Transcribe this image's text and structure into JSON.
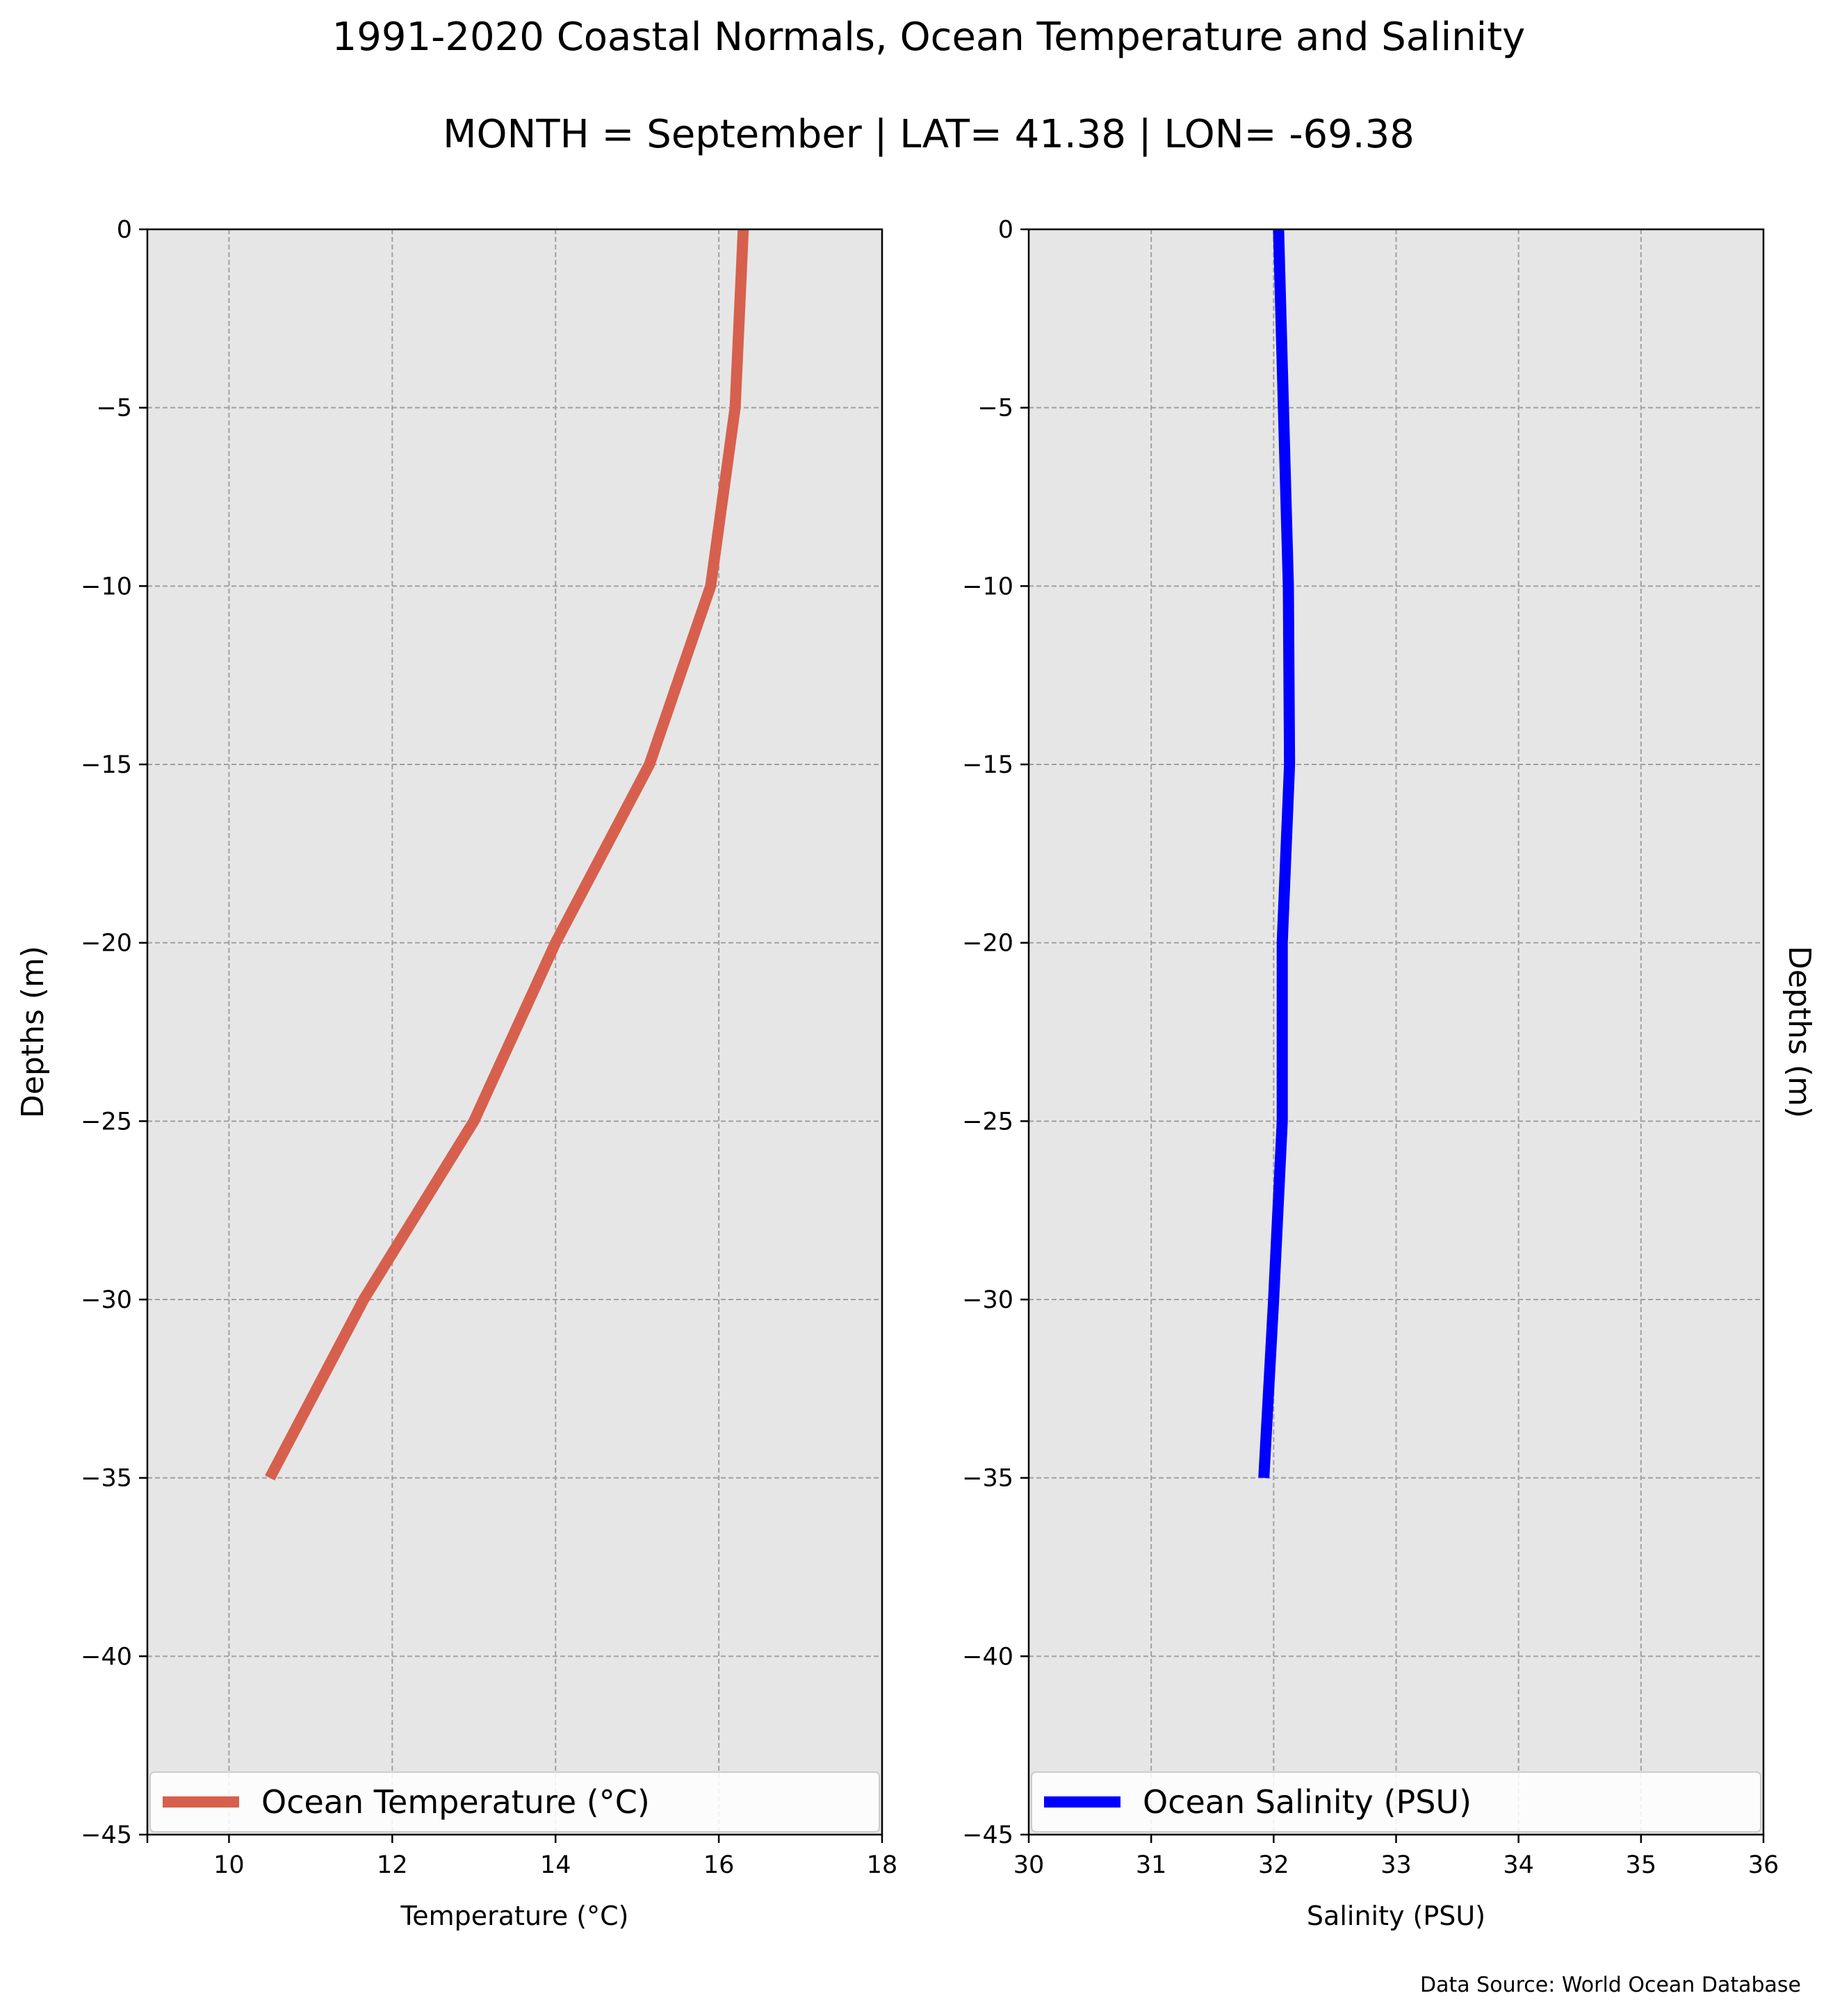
{
  "title": "1991-2020 Coastal Normals, Ocean Temperature and Salinity",
  "subtitle": "MONTH = September | LAT= 41.38 | LON= -69.38",
  "source_note": "Data Source: World Ocean Database",
  "colors": {
    "background": "#ffffff",
    "plot_bg": "#e6e6e6",
    "grid": "#a0a0a0",
    "temperature": "#d6604d",
    "salinity": "#0000ff"
  },
  "chart_data": [
    {
      "type": "line",
      "xlabel": "Temperature ($^\\circ$C)",
      "xlabel_display": "Temperature (°C)",
      "ylabel": "Depths (m)",
      "xlim": [
        9,
        18
      ],
      "ylim": [
        -45,
        0
      ],
      "xticks": [
        10,
        12,
        14,
        16,
        18
      ],
      "yticks": [
        0,
        -5,
        -10,
        -15,
        -20,
        -25,
        -30,
        -35,
        -40,
        -45
      ],
      "ytick_labels": [
        "0",
        "−5",
        "−10",
        "−15",
        "−20",
        "−25",
        "−30",
        "−35",
        "−40",
        "−45"
      ],
      "grid": true,
      "legend": "lower center",
      "series": [
        {
          "name": "Ocean Temperature (°C)",
          "color": "#d6604d",
          "x": [
            16.3,
            16.2,
            15.9,
            15.15,
            14.0,
            13.0,
            11.65,
            10.5
          ],
          "y": [
            0,
            -5,
            -10,
            -15,
            -20,
            -25,
            -30,
            -35
          ]
        }
      ]
    },
    {
      "type": "line",
      "xlabel": "Salinity (PSU)",
      "ylabel": "Depths (m)",
      "xlim": [
        30,
        36
      ],
      "ylim": [
        -45,
        0
      ],
      "xticks": [
        30,
        31,
        32,
        33,
        34,
        35,
        36
      ],
      "yticks": [
        0,
        -5,
        -10,
        -15,
        -20,
        -25,
        -30,
        -35,
        -40,
        -45
      ],
      "ytick_labels": [
        "0",
        "−5",
        "−10",
        "−15",
        "−20",
        "−25",
        "−30",
        "−35",
        "−40",
        "−45"
      ],
      "grid": true,
      "legend": "lower center",
      "series": [
        {
          "name": "Ocean Salinity (PSU)",
          "color": "#0000ff",
          "x": [
            32.04,
            32.08,
            32.12,
            32.13,
            32.07,
            32.07,
            32.0,
            31.92
          ],
          "y": [
            0,
            -5,
            -10,
            -15,
            -20,
            -25,
            -30,
            -35
          ]
        }
      ]
    }
  ]
}
